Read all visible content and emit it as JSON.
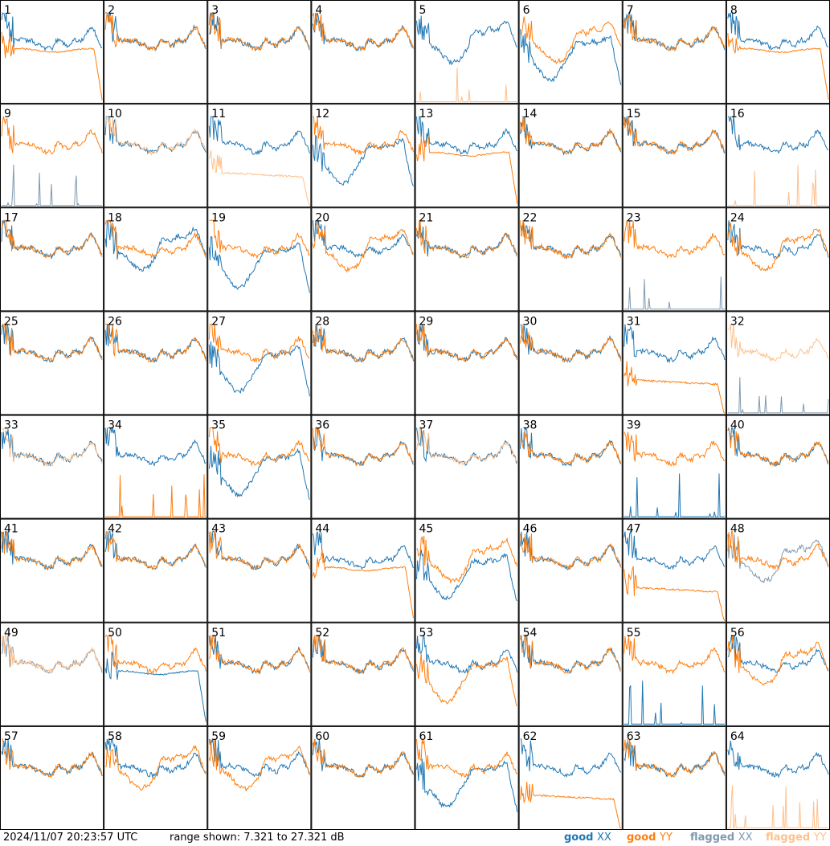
{
  "colors": {
    "good_xx": "#1f77b4",
    "good_yy": "#ff7f0e",
    "flagged_xx": "#7f99b0",
    "flagged_yy": "#ffc08a",
    "grid_line": "#000000",
    "background": "#ffffff"
  },
  "footer": {
    "timestamp": "2024/11/07 20:23:57 UTC",
    "range_text": "range shown: 7.321 to 27.321 dB"
  },
  "chart_data": {
    "type": "line",
    "title": "",
    "grid": {
      "rows": 8,
      "cols": 8
    },
    "y_range_db": [
      7.321,
      27.321
    ],
    "legend": {
      "placement": "bottom-right",
      "entries": [
        {
          "label": "good",
          "pol": "XX",
          "key": "good_xx"
        },
        {
          "label": "good",
          "pol": "YY",
          "key": "good_yy"
        },
        {
          "label": "flagged",
          "pol": "XX",
          "key": "flagged_xx"
        },
        {
          "label": "flagged",
          "pol": "YY",
          "key": "flagged_yy"
        }
      ]
    },
    "tiles": [
      {
        "label": "1",
        "xx": "good",
        "yy": "good",
        "xx_shape": "normal",
        "yy_shape": "flatdrop"
      },
      {
        "label": "2",
        "xx": "good",
        "yy": "good",
        "xx_shape": "normal",
        "yy_shape": "normal"
      },
      {
        "label": "3",
        "xx": "good",
        "yy": "good",
        "xx_shape": "normal",
        "yy_shape": "normal"
      },
      {
        "label": "4",
        "xx": "good",
        "yy": "good",
        "xx_shape": "normal",
        "yy_shape": "normal"
      },
      {
        "label": "5",
        "xx": "good",
        "yy": "flagged",
        "xx_shape": "dip",
        "yy_shape": "zero"
      },
      {
        "label": "6",
        "xx": "good",
        "yy": "good",
        "xx_shape": "lowdip",
        "yy_shape": "dip"
      },
      {
        "label": "7",
        "xx": "good",
        "yy": "good",
        "xx_shape": "normal",
        "yy_shape": "normal"
      },
      {
        "label": "8",
        "xx": "good",
        "yy": "good",
        "xx_shape": "normal",
        "yy_shape": "flatdrop"
      },
      {
        "label": "9",
        "xx": "flagged",
        "yy": "good",
        "xx_shape": "zero",
        "yy_shape": "normal"
      },
      {
        "label": "10",
        "xx": "good",
        "yy": "flagged",
        "xx_shape": "normal",
        "yy_shape": "normal"
      },
      {
        "label": "11",
        "xx": "good",
        "yy": "flagged",
        "xx_shape": "normal",
        "yy_shape": "lowflat"
      },
      {
        "label": "12",
        "xx": "good",
        "yy": "good",
        "xx_shape": "lowdip",
        "yy_shape": "normal"
      },
      {
        "label": "13",
        "xx": "good",
        "yy": "good",
        "xx_shape": "normal",
        "yy_shape": "flatdrop"
      },
      {
        "label": "14",
        "xx": "good",
        "yy": "good",
        "xx_shape": "normal",
        "yy_shape": "normal"
      },
      {
        "label": "15",
        "xx": "good",
        "yy": "good",
        "xx_shape": "normal",
        "yy_shape": "normal"
      },
      {
        "label": "16",
        "xx": "good",
        "yy": "flagged",
        "xx_shape": "normal",
        "yy_shape": "zero"
      },
      {
        "label": "17",
        "xx": "good",
        "yy": "good",
        "xx_shape": "normal",
        "yy_shape": "normal"
      },
      {
        "label": "18",
        "xx": "good",
        "yy": "good",
        "xx_shape": "dip",
        "yy_shape": "normal"
      },
      {
        "label": "19",
        "xx": "good",
        "yy": "good",
        "xx_shape": "lowdip",
        "yy_shape": "normal"
      },
      {
        "label": "20",
        "xx": "good",
        "yy": "good",
        "xx_shape": "normal",
        "yy_shape": "dip"
      },
      {
        "label": "21",
        "xx": "good",
        "yy": "good",
        "xx_shape": "normal",
        "yy_shape": "normal"
      },
      {
        "label": "22",
        "xx": "good",
        "yy": "good",
        "xx_shape": "normal",
        "yy_shape": "normal"
      },
      {
        "label": "23",
        "xx": "flagged",
        "yy": "good",
        "xx_shape": "zero",
        "yy_shape": "normal"
      },
      {
        "label": "24",
        "xx": "good",
        "yy": "good",
        "xx_shape": "normal",
        "yy_shape": "dip"
      },
      {
        "label": "25",
        "xx": "good",
        "yy": "good",
        "xx_shape": "normal",
        "yy_shape": "normal"
      },
      {
        "label": "26",
        "xx": "good",
        "yy": "good",
        "xx_shape": "normal",
        "yy_shape": "normal"
      },
      {
        "label": "27",
        "xx": "good",
        "yy": "good",
        "xx_shape": "lowdip",
        "yy_shape": "normal"
      },
      {
        "label": "28",
        "xx": "good",
        "yy": "good",
        "xx_shape": "normal",
        "yy_shape": "normal"
      },
      {
        "label": "29",
        "xx": "good",
        "yy": "good",
        "xx_shape": "normal",
        "yy_shape": "normal"
      },
      {
        "label": "30",
        "xx": "good",
        "yy": "good",
        "xx_shape": "normal",
        "yy_shape": "normal"
      },
      {
        "label": "31",
        "xx": "good",
        "yy": "good",
        "xx_shape": "normal",
        "yy_shape": "lowflat"
      },
      {
        "label": "32",
        "xx": "flagged",
        "yy": "flagged",
        "xx_shape": "zero",
        "yy_shape": "normal"
      },
      {
        "label": "33",
        "xx": "good",
        "yy": "flagged",
        "xx_shape": "normal",
        "yy_shape": "normal"
      },
      {
        "label": "34",
        "xx": "good",
        "yy": "good",
        "xx_shape": "normal",
        "yy_shape": "zero"
      },
      {
        "label": "35",
        "xx": "good",
        "yy": "good",
        "xx_shape": "lowdip",
        "yy_shape": "normal"
      },
      {
        "label": "36",
        "xx": "good",
        "yy": "good",
        "xx_shape": "normal",
        "yy_shape": "normal"
      },
      {
        "label": "37",
        "xx": "good",
        "yy": "flagged",
        "xx_shape": "normal",
        "yy_shape": "normal"
      },
      {
        "label": "38",
        "xx": "good",
        "yy": "good",
        "xx_shape": "normal",
        "yy_shape": "normal"
      },
      {
        "label": "39",
        "xx": "good",
        "yy": "good",
        "xx_shape": "zero",
        "yy_shape": "normal"
      },
      {
        "label": "40",
        "xx": "good",
        "yy": "good",
        "xx_shape": "normal",
        "yy_shape": "normal"
      },
      {
        "label": "41",
        "xx": "good",
        "yy": "good",
        "xx_shape": "normal",
        "yy_shape": "normal"
      },
      {
        "label": "42",
        "xx": "good",
        "yy": "good",
        "xx_shape": "normal",
        "yy_shape": "normal"
      },
      {
        "label": "43",
        "xx": "good",
        "yy": "good",
        "xx_shape": "normal",
        "yy_shape": "normal"
      },
      {
        "label": "44",
        "xx": "good",
        "yy": "good",
        "xx_shape": "normal",
        "yy_shape": "flatdrop"
      },
      {
        "label": "45",
        "xx": "good",
        "yy": "good",
        "xx_shape": "lowdip",
        "yy_shape": "dip"
      },
      {
        "label": "46",
        "xx": "good",
        "yy": "good",
        "xx_shape": "normal",
        "yy_shape": "normal"
      },
      {
        "label": "47",
        "xx": "good",
        "yy": "good",
        "xx_shape": "normal",
        "yy_shape": "lowflat"
      },
      {
        "label": "48",
        "xx": "flagged",
        "yy": "good",
        "xx_shape": "dip",
        "yy_shape": "normal"
      },
      {
        "label": "49",
        "xx": "flagged",
        "yy": "flagged",
        "xx_shape": "normal",
        "yy_shape": "normal"
      },
      {
        "label": "50",
        "xx": "good",
        "yy": "good",
        "xx_shape": "flatdrop",
        "yy_shape": "normal"
      },
      {
        "label": "51",
        "xx": "good",
        "yy": "good",
        "xx_shape": "normal",
        "yy_shape": "normal"
      },
      {
        "label": "52",
        "xx": "good",
        "yy": "good",
        "xx_shape": "normal",
        "yy_shape": "normal"
      },
      {
        "label": "53",
        "xx": "good",
        "yy": "good",
        "xx_shape": "normal",
        "yy_shape": "lowdip"
      },
      {
        "label": "54",
        "xx": "good",
        "yy": "good",
        "xx_shape": "normal",
        "yy_shape": "normal"
      },
      {
        "label": "55",
        "xx": "good",
        "yy": "good",
        "xx_shape": "zero",
        "yy_shape": "normal"
      },
      {
        "label": "56",
        "xx": "good",
        "yy": "good",
        "xx_shape": "normal",
        "yy_shape": "dip"
      },
      {
        "label": "57",
        "xx": "good",
        "yy": "good",
        "xx_shape": "normal",
        "yy_shape": "normal"
      },
      {
        "label": "58",
        "xx": "good",
        "yy": "good",
        "xx_shape": "normal",
        "yy_shape": "dip"
      },
      {
        "label": "59",
        "xx": "good",
        "yy": "good",
        "xx_shape": "normal",
        "yy_shape": "dip"
      },
      {
        "label": "60",
        "xx": "good",
        "yy": "good",
        "xx_shape": "normal",
        "yy_shape": "normal"
      },
      {
        "label": "61",
        "xx": "good",
        "yy": "good",
        "xx_shape": "lowdip",
        "yy_shape": "normal"
      },
      {
        "label": "62",
        "xx": "good",
        "yy": "good",
        "xx_shape": "normal",
        "yy_shape": "lowflat"
      },
      {
        "label": "63",
        "xx": "good",
        "yy": "good",
        "xx_shape": "normal",
        "yy_shape": "normal"
      },
      {
        "label": "64",
        "xx": "good",
        "yy": "flagged",
        "xx_shape": "normal",
        "yy_shape": "zero"
      }
    ]
  }
}
